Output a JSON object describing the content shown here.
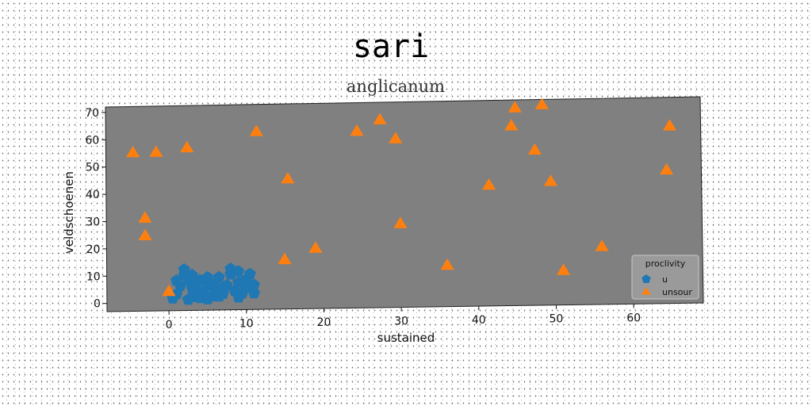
{
  "chart_data": {
    "type": "scatter",
    "title": "sari",
    "subtitle": "anglicanum",
    "xlabel": "sustained",
    "ylabel": "veldschoenen",
    "xlim": [
      -8,
      69
    ],
    "ylim": [
      -3,
      72
    ],
    "xticks": [
      0,
      10,
      20,
      30,
      40,
      50,
      60
    ],
    "yticks": [
      0,
      10,
      20,
      30,
      40,
      50,
      60,
      70
    ],
    "grid": false,
    "background": "#808080",
    "legend": {
      "title": "proclivity",
      "position": "bottom-right"
    },
    "series": [
      {
        "name": "u",
        "marker": "pentagon",
        "color": "#1f77b4",
        "points": [
          [
            0.5,
            1.5
          ],
          [
            1,
            3
          ],
          [
            1.5,
            6
          ],
          [
            2,
            10
          ],
          [
            2,
            12
          ],
          [
            2.5,
            8
          ],
          [
            3,
            5
          ],
          [
            3,
            2
          ],
          [
            3.5,
            7
          ],
          [
            4,
            4
          ],
          [
            4,
            8
          ],
          [
            4.5,
            3
          ],
          [
            5,
            6
          ],
          [
            5,
            9
          ],
          [
            5.5,
            2
          ],
          [
            6,
            7
          ],
          [
            6,
            4
          ],
          [
            6.5,
            9
          ],
          [
            7,
            5
          ],
          [
            7,
            3
          ],
          [
            7.5,
            6
          ],
          [
            8,
            10
          ],
          [
            8,
            12
          ],
          [
            8.5,
            4
          ],
          [
            9,
            7
          ],
          [
            9,
            11
          ],
          [
            9.5,
            3
          ],
          [
            10,
            8
          ],
          [
            10,
            5
          ],
          [
            10.5,
            10
          ],
          [
            11,
            6
          ],
          [
            11,
            3
          ],
          [
            1,
            8
          ],
          [
            2.5,
            1
          ],
          [
            4,
            1.5
          ],
          [
            6.5,
            2
          ],
          [
            9,
            1.5
          ],
          [
            3,
            10
          ],
          [
            5,
            1
          ]
        ]
      },
      {
        "name": "unsour",
        "marker": "triangle",
        "color": "#ff7f0e",
        "points": [
          [
            -4.5,
            55
          ],
          [
            -1.5,
            55
          ],
          [
            2.5,
            56.5
          ],
          [
            -3,
            31
          ],
          [
            -3,
            24.5
          ],
          [
            0,
            4
          ],
          [
            11.5,
            62
          ],
          [
            15.5,
            44.5
          ],
          [
            15,
            15
          ],
          [
            19,
            19
          ],
          [
            24.5,
            61.5
          ],
          [
            27.5,
            65.5
          ],
          [
            29.5,
            58.5
          ],
          [
            30,
            27.5
          ],
          [
            36,
            12
          ],
          [
            41.5,
            41
          ],
          [
            44.5,
            62.5
          ],
          [
            45,
            69
          ],
          [
            47.5,
            53.5
          ],
          [
            48.5,
            70
          ],
          [
            49.5,
            42
          ],
          [
            51,
            9.5
          ],
          [
            56,
            18
          ],
          [
            64.5,
            45.5
          ],
          [
            65,
            61.5
          ]
        ]
      }
    ]
  }
}
